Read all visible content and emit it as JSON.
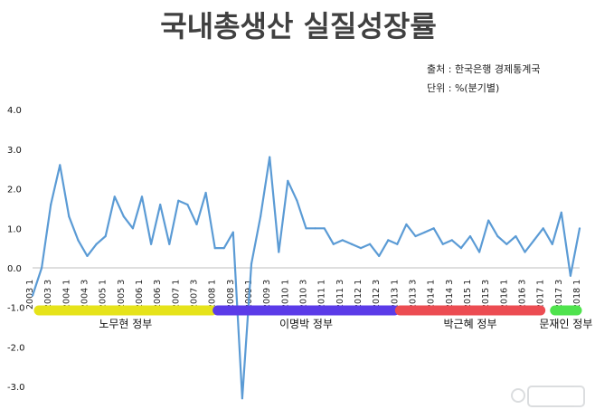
{
  "chart_data": {
    "type": "line",
    "title": "국내총생산 실질성장률",
    "source": "출처 : 한국은행 경제통계국",
    "unit": "단위 : %(분기별)",
    "xlabel": "",
    "ylabel": "",
    "ylim": [
      -3.5,
      4.0
    ],
    "yticks": [
      "4.0",
      "3.0",
      "2.0",
      "1.0",
      "0.0",
      "-1.0",
      "-2.0",
      "-3.0"
    ],
    "grid": false,
    "legend": "none",
    "line_color": "#5b9bd5",
    "x_labels": [
      "2003 1",
      "2003 3",
      "2004 1",
      "2004 3",
      "2005 1",
      "2005 3",
      "2006 1",
      "2006 3",
      "2007 1",
      "2007 3",
      "2008 1",
      "2008 3",
      "2009 1",
      "2009 3",
      "2010 1",
      "2010 3",
      "2011 1",
      "2011 3",
      "2012 1",
      "2012 3",
      "2013 1",
      "2013 3",
      "2014 1",
      "2014 3",
      "2015 1",
      "2015 3",
      "2016 1",
      "2016 3",
      "2017 1",
      "2017 3",
      "2018 1"
    ],
    "x": [
      "2003 1",
      "2003 2",
      "2003 3",
      "2003 4",
      "2004 1",
      "2004 2",
      "2004 3",
      "2004 4",
      "2005 1",
      "2005 2",
      "2005 3",
      "2005 4",
      "2006 1",
      "2006 2",
      "2006 3",
      "2006 4",
      "2007 1",
      "2007 2",
      "2007 3",
      "2007 4",
      "2008 1",
      "2008 2",
      "2008 3",
      "2008 4",
      "2009 1",
      "2009 2",
      "2009 3",
      "2009 4",
      "2010 1",
      "2010 2",
      "2010 3",
      "2010 4",
      "2011 1",
      "2011 2",
      "2011 3",
      "2011 4",
      "2012 1",
      "2012 2",
      "2012 3",
      "2012 4",
      "2013 1",
      "2013 2",
      "2013 3",
      "2013 4",
      "2014 1",
      "2014 2",
      "2014 3",
      "2014 4",
      "2015 1",
      "2015 2",
      "2015 3",
      "2015 4",
      "2016 1",
      "2016 2",
      "2016 3",
      "2016 4",
      "2017 1",
      "2017 2",
      "2017 3",
      "2017 4",
      "2018 1"
    ],
    "values": [
      -0.7,
      0.0,
      1.6,
      2.6,
      1.3,
      0.7,
      0.3,
      0.6,
      0.8,
      1.8,
      1.3,
      1.0,
      1.8,
      0.6,
      1.6,
      0.6,
      1.7,
      1.6,
      1.1,
      1.9,
      0.5,
      0.5,
      0.9,
      -3.3,
      0.1,
      1.3,
      2.8,
      0.4,
      2.2,
      1.7,
      1.0,
      1.0,
      1.0,
      0.6,
      0.7,
      0.6,
      0.5,
      0.6,
      0.3,
      0.7,
      0.6,
      1.1,
      0.8,
      0.9,
      1.0,
      0.6,
      0.7,
      0.5,
      0.8,
      0.4,
      1.2,
      0.8,
      0.6,
      0.8,
      0.4,
      0.7,
      1.0,
      0.6,
      1.4,
      -0.2,
      1.0
    ],
    "periods": [
      {
        "name": "노무현 정부",
        "from": "2003 1",
        "to": "2008 1",
        "color": "#e6e31a"
      },
      {
        "name": "이명박 정부",
        "from": "2008 1",
        "to": "2013 1",
        "color": "#5b3be8"
      },
      {
        "name": "박근혜 정부",
        "from": "2013 1",
        "to": "2017 1",
        "color": "#ec4c52"
      },
      {
        "name": "문재인 정부",
        "from": "2017 2",
        "to": "2018 1",
        "color": "#4fe34d"
      }
    ]
  }
}
